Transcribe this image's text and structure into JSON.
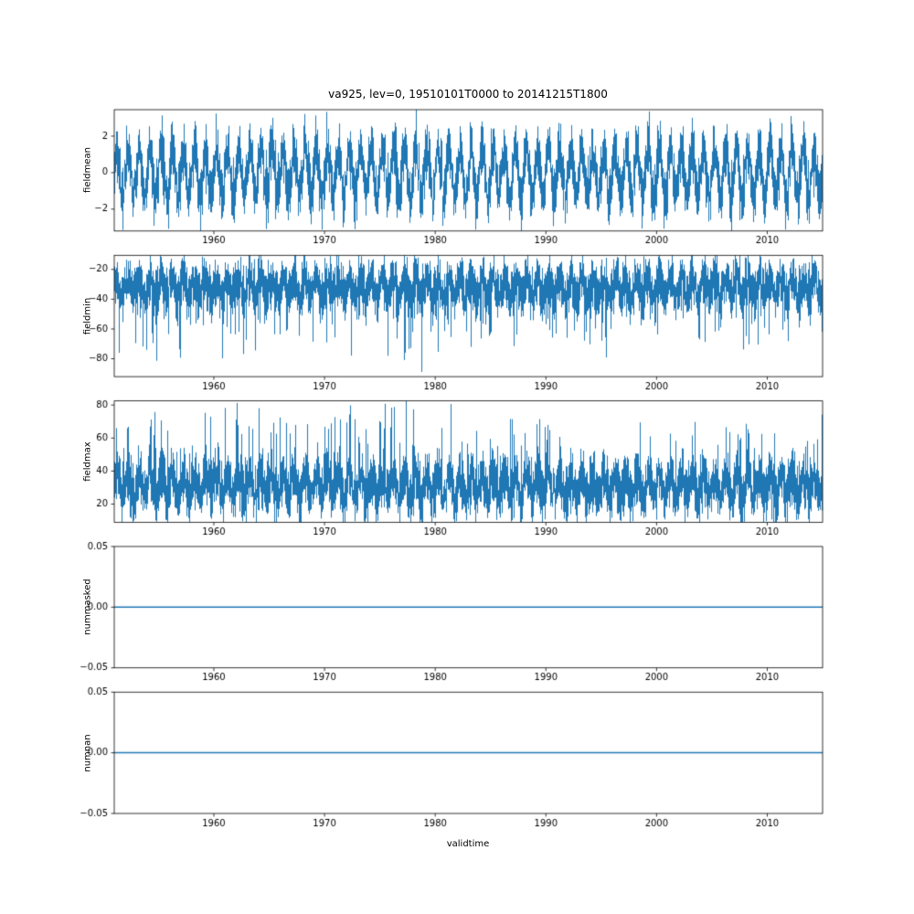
{
  "chart_data": {
    "type": "line",
    "title": "va925, lev=0, 19510101T0000 to 20141215T1800",
    "xlabel": "validtime",
    "line_color": "#1f77b4",
    "background": "#ffffff",
    "x_range": [
      1951.0,
      2015.0
    ],
    "x_ticks": [
      {
        "value": 1960,
        "label": "1960"
      },
      {
        "value": 1970,
        "label": "1970"
      },
      {
        "value": 1980,
        "label": "1980"
      },
      {
        "value": 1990,
        "label": "1990"
      },
      {
        "value": 2000,
        "label": "2000"
      },
      {
        "value": 2010,
        "label": "2010"
      }
    ],
    "subplots": [
      {
        "name": "fieldmean",
        "ylabel": "fieldmean",
        "ylim": [
          -3.2,
          3.45
        ],
        "yticks": [
          {
            "value": 2,
            "label": "2"
          },
          {
            "value": 0,
            "label": "0"
          },
          {
            "value": -2,
            "label": "−2"
          }
        ],
        "series": {
          "kind": "noisy",
          "mean": 0,
          "seasonal_amplitude": 1.3,
          "noise_sigma": 0.7,
          "spike_direction": 0,
          "spike_probability": 0,
          "spike_min": 0,
          "spike_max": 0,
          "observed_min": -3.1,
          "observed_max": 3.6,
          "seed": 11
        }
      },
      {
        "name": "fieldmin",
        "ylabel": "fieldmin",
        "ylim": [
          -92,
          -10.5
        ],
        "yticks": [
          {
            "value": -20,
            "label": "−20"
          },
          {
            "value": -40,
            "label": "−40"
          },
          {
            "value": -60,
            "label": "−60"
          },
          {
            "value": -80,
            "label": "−80"
          }
        ],
        "series": {
          "kind": "noisy",
          "mean": -32,
          "seasonal_amplitude": 6,
          "noise_sigma": 7.5,
          "spike_direction": -1,
          "spike_probability": 0.16,
          "spike_min": 8,
          "spike_max": 38,
          "observed_min": -86,
          "observed_max": -14,
          "seed": 22
        }
      },
      {
        "name": "fieldmax",
        "ylabel": "fieldmax",
        "ylim": [
          9,
          82.5
        ],
        "yticks": [
          {
            "value": 80,
            "label": "80"
          },
          {
            "value": 60,
            "label": "60"
          },
          {
            "value": 40,
            "label": "40"
          },
          {
            "value": 20,
            "label": "20"
          }
        ],
        "series": {
          "kind": "noisy",
          "mean": 31,
          "seasonal_amplitude": 7,
          "noise_sigma": 7.5,
          "spike_direction": 1,
          "spike_probability": 0.18,
          "spike_min": 8,
          "spike_max": 38,
          "observed_min": 12,
          "observed_max": 82,
          "seed": 33
        }
      },
      {
        "name": "nummasked",
        "ylabel": "nummasked",
        "ylim": [
          -0.05,
          0.05
        ],
        "yticks": [
          {
            "value": 0.05,
            "label": "0.05"
          },
          {
            "value": 0,
            "label": "0.00"
          },
          {
            "value": -0.05,
            "label": "−0.05"
          }
        ],
        "series": {
          "kind": "constant",
          "value": 0,
          "seed": 44
        }
      },
      {
        "name": "numnan",
        "ylabel": "numnan",
        "ylim": [
          -0.05,
          0.05
        ],
        "yticks": [
          {
            "value": 0.05,
            "label": "0.05"
          },
          {
            "value": 0,
            "label": "0.00"
          },
          {
            "value": -0.05,
            "label": "−0.05"
          }
        ],
        "series": {
          "kind": "constant",
          "value": 0,
          "seed": 55
        }
      }
    ]
  }
}
